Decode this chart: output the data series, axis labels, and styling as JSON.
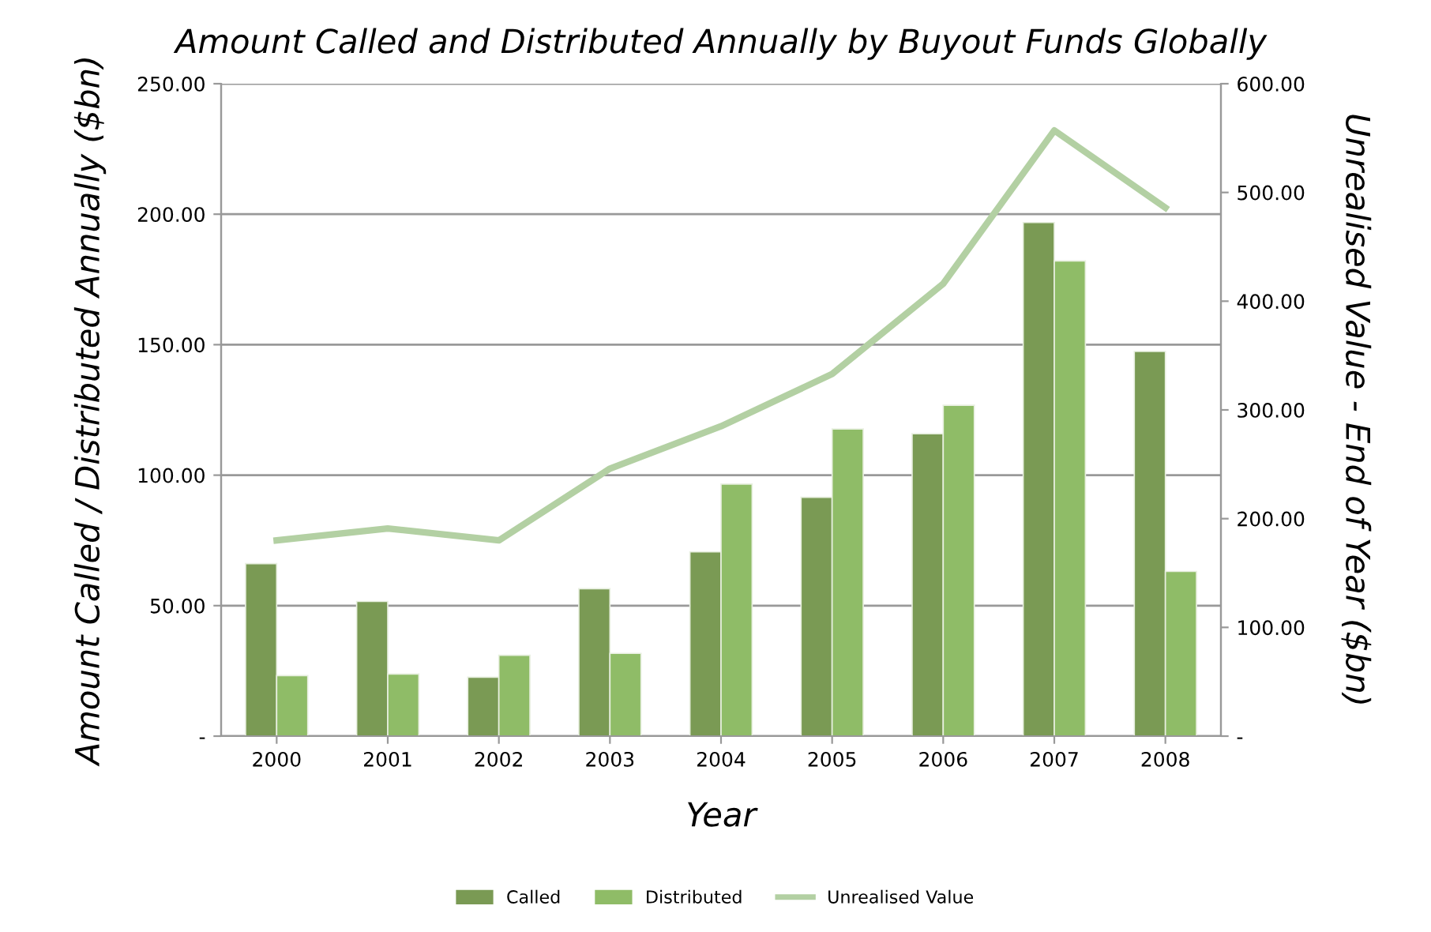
{
  "chart_data": {
    "type": "bar",
    "title": "Amount Called and Distributed Annually by Buyout Funds Globally",
    "xlabel": "Year",
    "ylabel": "Amount Called / Distributed Annually ($bn)",
    "y2label": "Unrealised Value - End of Year ($bn)",
    "categories": [
      "2000",
      "2001",
      "2002",
      "2003",
      "2004",
      "2005",
      "2006",
      "2007",
      "2008"
    ],
    "series": [
      {
        "name": "Called",
        "color": "#7a9a54",
        "values": [
          66.1,
          51.6,
          22.6,
          56.5,
          70.6,
          91.5,
          115.9,
          196.8,
          147.4
        ]
      },
      {
        "name": "Distributed",
        "color": "#8fbc67",
        "values": [
          23.2,
          23.8,
          31.0,
          31.7,
          96.6,
          117.7,
          126.8,
          182.1,
          63.1
        ]
      },
      {
        "name": "Unrealised Value",
        "type": "line",
        "axis": "y2",
        "color": "#b3d0a3",
        "values": [
          180,
          191,
          180,
          246,
          285,
          333,
          416,
          557,
          486
        ]
      }
    ],
    "ylim": [
      0,
      250
    ],
    "yticks": [
      {
        "value": 0,
        "label": "-"
      },
      {
        "value": 50,
        "label": "50.00"
      },
      {
        "value": 100,
        "label": "100.00"
      },
      {
        "value": 150,
        "label": "150.00"
      },
      {
        "value": 200,
        "label": "200.00"
      },
      {
        "value": 250,
        "label": "250.00"
      }
    ],
    "y2lim": [
      0,
      600
    ],
    "y2ticks": [
      {
        "value": 0,
        "label": "-"
      },
      {
        "value": 100,
        "label": "100.00"
      },
      {
        "value": 200,
        "label": "200.00"
      },
      {
        "value": 300,
        "label": "300.00"
      },
      {
        "value": 400,
        "label": "400.00"
      },
      {
        "value": 500,
        "label": "500.00"
      },
      {
        "value": 600,
        "label": "600.00"
      }
    ],
    "grid": "y",
    "legend": "bottom",
    "marker": "none",
    "line_style": "solid"
  }
}
